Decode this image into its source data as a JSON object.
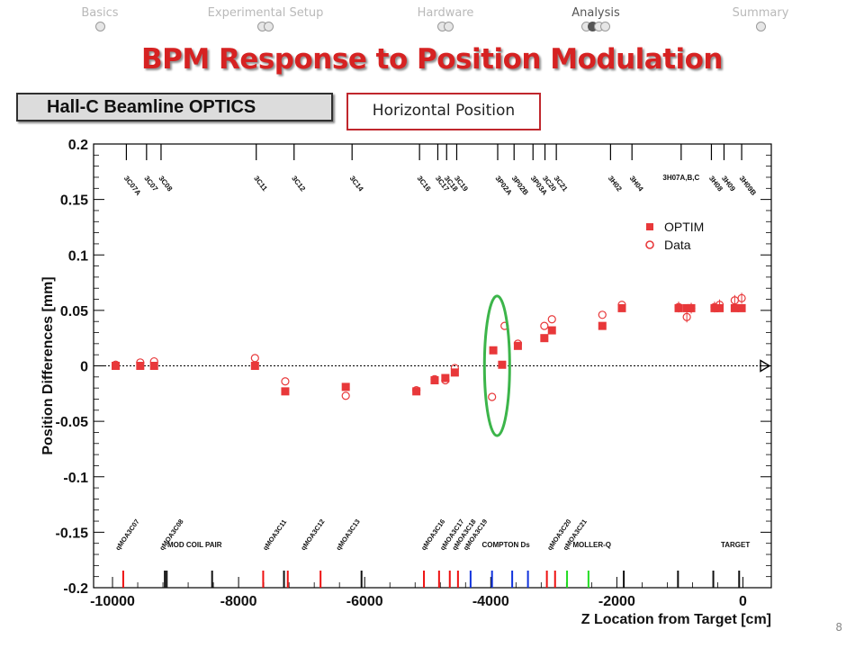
{
  "nav": {
    "sections": [
      {
        "label": "Basics",
        "dots": 1,
        "filled": [],
        "active": false
      },
      {
        "label": "Experimental Setup",
        "dots": 2,
        "filled": [],
        "active": false
      },
      {
        "label": "Hardware",
        "dots": 2,
        "filled": [],
        "active": false
      },
      {
        "label": "Analysis",
        "dots": 4,
        "filled": [
          1
        ],
        "active": true
      },
      {
        "label": "Summary",
        "dots": 1,
        "filled": [],
        "active": false
      }
    ]
  },
  "slide": {
    "title": "BPM Response to Position Modulation",
    "beamline_label": "Hall-C Beamline OPTICS",
    "view_label": "Horizontal Position",
    "page_number": "8"
  },
  "colors": {
    "title": "#d62222",
    "optim": "#e8383a",
    "data": "#e8383a",
    "highlight_ellipse": "#3cb54a",
    "magnet_red": "#ee1111",
    "magnet_black": "#111111",
    "magnet_blue": "#1133dd",
    "magnet_green": "#22dd22"
  },
  "chart_data": {
    "type": "scatter",
    "xlabel": "Z Location from Target [cm]",
    "ylabel": "Position Differences [mm]",
    "xlim": [
      -10300,
      450
    ],
    "ylim": [
      -0.2,
      0.2
    ],
    "xticks": [
      -10000,
      -8000,
      -6000,
      -4000,
      -2000,
      0
    ],
    "xtick_labels": [
      "-10000",
      "-8000",
      "-6000",
      "-4000",
      "-2000",
      "0"
    ],
    "yticks": [
      0.2,
      0.15,
      0.1,
      0.05,
      0,
      -0.05,
      -0.1,
      -0.15,
      -0.2
    ],
    "ytick_labels": [
      "0.2",
      "0.15",
      "0.1",
      "0.05",
      "0",
      "-0.05",
      "-0.1",
      "-0.15",
      "-0.2"
    ],
    "legend": {
      "position": "top-right",
      "entries": [
        "OPTIM",
        "Data"
      ]
    },
    "series": [
      {
        "name": "OPTIM",
        "marker": "filled-square",
        "points": [
          {
            "x": -9950,
            "y": 0.0
          },
          {
            "x": -9560,
            "y": 0.0
          },
          {
            "x": -9340,
            "y": 0.0
          },
          {
            "x": -7740,
            "y": 0.0
          },
          {
            "x": -7260,
            "y": -0.023
          },
          {
            "x": -6300,
            "y": -0.019
          },
          {
            "x": -5180,
            "y": -0.023
          },
          {
            "x": -4890,
            "y": -0.013
          },
          {
            "x": -4720,
            "y": -0.011
          },
          {
            "x": -4570,
            "y": -0.006
          },
          {
            "x": -3960,
            "y": 0.014
          },
          {
            "x": -3820,
            "y": 0.001
          },
          {
            "x": -3570,
            "y": 0.018
          },
          {
            "x": -3150,
            "y": 0.025
          },
          {
            "x": -3030,
            "y": 0.032
          },
          {
            "x": -2230,
            "y": 0.036
          },
          {
            "x": -1920,
            "y": 0.052
          },
          {
            "x": -1020,
            "y": 0.052
          },
          {
            "x": -890,
            "y": 0.052
          },
          {
            "x": -820,
            "y": 0.052
          },
          {
            "x": -450,
            "y": 0.052
          },
          {
            "x": -370,
            "y": 0.052
          },
          {
            "x": -130,
            "y": 0.052
          },
          {
            "x": -20,
            "y": 0.052
          }
        ]
      },
      {
        "name": "Data",
        "marker": "open-circle",
        "points": [
          {
            "x": -9950,
            "y": 0.001
          },
          {
            "x": -9560,
            "y": 0.003
          },
          {
            "x": -9340,
            "y": 0.004
          },
          {
            "x": -7740,
            "y": 0.007
          },
          {
            "x": -7260,
            "y": -0.014
          },
          {
            "x": -6300,
            "y": -0.027
          },
          {
            "x": -5180,
            "y": -0.022
          },
          {
            "x": -4890,
            "y": -0.012
          },
          {
            "x": -4720,
            "y": -0.013
          },
          {
            "x": -4570,
            "y": -0.002
          },
          {
            "x": -3980,
            "y": -0.028
          },
          {
            "x": -3780,
            "y": 0.036
          },
          {
            "x": -3570,
            "y": 0.02
          },
          {
            "x": -3150,
            "y": 0.036
          },
          {
            "x": -3030,
            "y": 0.042
          },
          {
            "x": -2230,
            "y": 0.046
          },
          {
            "x": -1920,
            "y": 0.055
          },
          {
            "x": -1020,
            "y": 0.053
          },
          {
            "x": -890,
            "y": 0.044
          },
          {
            "x": -820,
            "y": 0.052
          },
          {
            "x": -450,
            "y": 0.053
          },
          {
            "x": -370,
            "y": 0.055
          },
          {
            "x": -130,
            "y": 0.059
          },
          {
            "x": -20,
            "y": 0.061
          }
        ]
      }
    ],
    "bpm_markers": [
      {
        "label": "3C07A",
        "x": -9780
      },
      {
        "label": "3C07",
        "x": -9460
      },
      {
        "label": "3C08",
        "x": -9230
      },
      {
        "label": "3C11",
        "x": -7720
      },
      {
        "label": "3C12",
        "x": -7120
      },
      {
        "label": "3C14",
        "x": -6200
      },
      {
        "label": "3C16",
        "x": -5130
      },
      {
        "label": "3C17",
        "x": -4840
      },
      {
        "label": "3C18",
        "x": -4700
      },
      {
        "label": "3C19",
        "x": -4540
      },
      {
        "label": "3P02A",
        "x": -3890
      },
      {
        "label": "3P02B",
        "x": -3630
      },
      {
        "label": "3P03A",
        "x": -3330
      },
      {
        "label": "3C20",
        "x": -3140
      },
      {
        "label": "3C21",
        "x": -2960
      },
      {
        "label": "3H02",
        "x": -2100
      },
      {
        "label": "3H04",
        "x": -1760
      },
      {
        "label": "3H07A,B,C",
        "x": -980
      },
      {
        "label": "3H08",
        "x": -500
      },
      {
        "label": "3H09",
        "x": -300
      },
      {
        "label": "3H09B",
        "x": -20
      }
    ],
    "magnet_labels": [
      {
        "label": "qMOA3C07",
        "x": -9900
      },
      {
        "label": "qMOA3C08",
        "x": -9200
      },
      {
        "label": "qMOA3C11",
        "x": -7560
      },
      {
        "label": "qMOA3C12",
        "x": -6960
      },
      {
        "label": "qMOA3C13",
        "x": -6400
      },
      {
        "label": "qMOA3C16",
        "x": -5050
      },
      {
        "label": "qMOA3C17",
        "x": -4750
      },
      {
        "label": "qMOA3C18",
        "x": -4560
      },
      {
        "label": "qMOA3C19",
        "x": -4380
      },
      {
        "label": "qMOA3C20",
        "x": -3050
      },
      {
        "label": "qMOA3C21",
        "x": -2800
      }
    ],
    "region_labels": [
      {
        "label": "MOD COIL PAIR",
        "x": -9130
      },
      {
        "label": "COMPTON Ds",
        "x": -4140
      },
      {
        "label": "MOLLER-Q",
        "x": -2700
      },
      {
        "label": "TARGET",
        "x": -350
      }
    ],
    "magnets": [
      {
        "x": -9830,
        "color": "red"
      },
      {
        "x": -9170,
        "color": "black"
      },
      {
        "x": -9140,
        "color": "black"
      },
      {
        "x": -8420,
        "color": "black"
      },
      {
        "x": -7280,
        "color": "black"
      },
      {
        "x": -7610,
        "color": "red"
      },
      {
        "x": -7220,
        "color": "red"
      },
      {
        "x": -6700,
        "color": "red"
      },
      {
        "x": -6050,
        "color": "black"
      },
      {
        "x": -5060,
        "color": "red"
      },
      {
        "x": -4820,
        "color": "red"
      },
      {
        "x": -4650,
        "color": "red"
      },
      {
        "x": -4520,
        "color": "red"
      },
      {
        "x": -4320,
        "color": "blue"
      },
      {
        "x": -3980,
        "color": "blue"
      },
      {
        "x": -3660,
        "color": "blue"
      },
      {
        "x": -3410,
        "color": "blue"
      },
      {
        "x": -3110,
        "color": "red"
      },
      {
        "x": -2980,
        "color": "red"
      },
      {
        "x": -2790,
        "color": "green"
      },
      {
        "x": -2450,
        "color": "green"
      },
      {
        "x": -1890,
        "color": "black"
      },
      {
        "x": -1030,
        "color": "black"
      },
      {
        "x": -470,
        "color": "black"
      },
      {
        "x": -60,
        "color": "black"
      }
    ],
    "highlight": {
      "x_center": -3900,
      "y_center": 0.0,
      "x_half_width": 200,
      "y_half_height": 0.063
    }
  }
}
